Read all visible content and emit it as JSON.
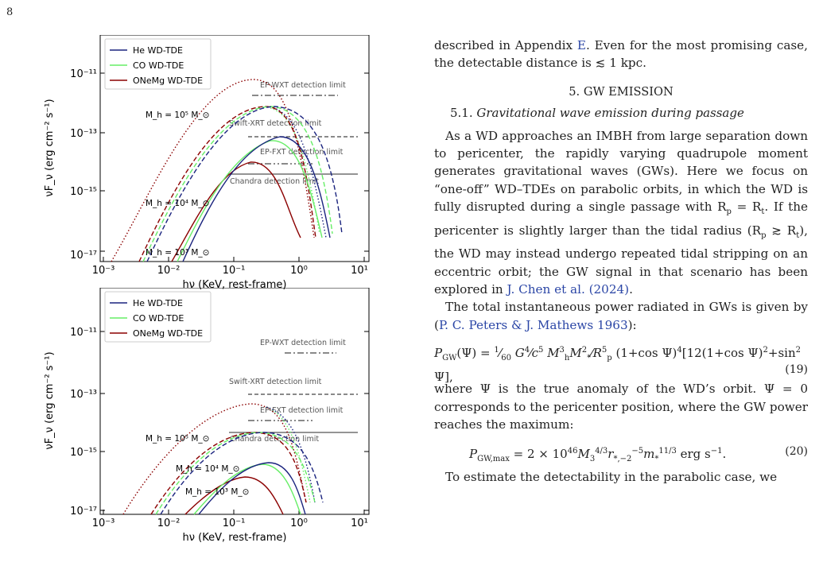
{
  "page_number": "8",
  "figure": {
    "legend": [
      "He WD-TDE",
      "CO WD-TDE",
      "ONeMg WD-TDE"
    ],
    "legend_colors": [
      "#1a237e",
      "#66ee66",
      "#8b0000"
    ],
    "ylabel": "νF_ν (erg cm⁻² s⁻¹)",
    "xlabel": "hν (KeV, rest-frame)",
    "xticks": [
      "10⁻³",
      "10⁻²",
      "10⁻¹",
      "10⁰",
      "10¹"
    ],
    "yticks": [
      "10⁻¹¹",
      "10⁻¹³",
      "10⁻¹⁵",
      "10⁻¹⁷"
    ],
    "limits": [
      "EP-WXT detection limit",
      "Swift-XRT detection limit",
      "EP-FXT detection limit",
      "Chandra detection limit"
    ],
    "top_masses": [
      "M_h = 10⁵ M_⊙",
      "M_h = 10⁴ M_⊙",
      "M_h = 10³ M_⊙"
    ],
    "bottom_masses": [
      "M_h = 10⁵ M_⊙",
      "M_h = 10⁴ M_⊙",
      "M_h = 10³ M_⊙"
    ]
  },
  "chart_data": [
    {
      "type": "line",
      "xlabel": "hν (KeV, rest-frame)",
      "ylabel": "νF_ν (erg cm⁻² s⁻¹)",
      "xlim": [
        0.001,
        20
      ],
      "ylim": [
        1e-17,
        3e-10
      ],
      "xscale": "log",
      "yscale": "log",
      "legend_position": "top-left",
      "series": [
        {
          "name": "He WD-TDE",
          "values": []
        },
        {
          "name": "CO WD-TDE",
          "values": []
        },
        {
          "name": "ONeMg WD-TDE",
          "values": []
        }
      ],
      "detection_limits": [
        {
          "label": "EP-WXT detection limit",
          "x": [
            0.3,
            2
          ],
          "y": 2e-12
        },
        {
          "label": "Swift-XRT detection limit",
          "x": [
            0.5,
            10
          ],
          "y": 9e-14
        },
        {
          "label": "EP-FXT detection limit",
          "x": [
            0.5,
            10
          ],
          "y": 1e-14
        },
        {
          "label": "Chandra detection limit",
          "x": [
            0.1,
            10
          ],
          "y": 4e-15
        }
      ]
    },
    {
      "type": "line",
      "xlabel": "hν (KeV, rest-frame)",
      "ylabel": "νF_ν (erg cm⁻² s⁻¹)",
      "xlim": [
        0.001,
        20
      ],
      "ylim": [
        1e-17,
        3e-10
      ],
      "xscale": "log",
      "yscale": "log",
      "legend_position": "top-left",
      "series": [
        {
          "name": "He WD-TDE",
          "values": []
        },
        {
          "name": "CO WD-TDE",
          "values": []
        },
        {
          "name": "ONeMg WD-TDE",
          "values": []
        }
      ],
      "detection_limits": [
        {
          "label": "EP-WXT detection limit",
          "x": [
            0.3,
            2
          ],
          "y": 2e-12
        },
        {
          "label": "Swift-XRT detection limit",
          "x": [
            0.5,
            10
          ],
          "y": 9e-14
        },
        {
          "label": "EP-FXT detection limit",
          "x": [
            0.5,
            10
          ],
          "y": 1e-14
        },
        {
          "label": "Chandra detection limit",
          "x": [
            0.1,
            10
          ],
          "y": 4e-15
        }
      ]
    }
  ],
  "text": {
    "intro_1": "described in Appendix ",
    "intro_link": "E",
    "intro_2": ". Even for the most promising case, the detectable distance is ≲ 1 kpc.",
    "section": "5.  GW EMISSION",
    "subsection_num": "5.1.",
    "subsection": "Gravitational wave emission during passage",
    "p1": "As a WD approaches an IMBH from large separation down to pericenter, the rapidly varying quadrupole moment generates gravitational waves (GWs). Here we focus on “one-off” WD–TDEs on parabolic orbits, in which the WD is fully disrupted during a single passage with R",
    "p1b": " = R",
    "p1c": ". If the pericenter is slightly larger than the tidal radius (R",
    "p1d": " ≳ R",
    "p1e": "), the WD may instead undergo repeated tidal stripping on an eccentric orbit; the GW signal in that scenario has been explored in ",
    "p1_cite": "J. Chen et al. (2024)",
    "p1_end": ".",
    "p2": "The total instantaneous power radiated in GWs is given by (",
    "p2_cite": "P. C. Peters & J. Mathews 1963",
    "p2_end": "):",
    "eq19_no": "(19)",
    "p3": "where Ψ is the true anomaly of the WD’s orbit. Ψ = 0 corresponds to the pericenter position, where the GW power reaches the maximum:",
    "eq20_no": "(20)",
    "p4": "To estimate the detectability in the parabolic case, we"
  },
  "colors": {
    "he": "#1a237e",
    "co": "#66ee66",
    "one": "#8b0000",
    "link": "#2b46a6"
  }
}
